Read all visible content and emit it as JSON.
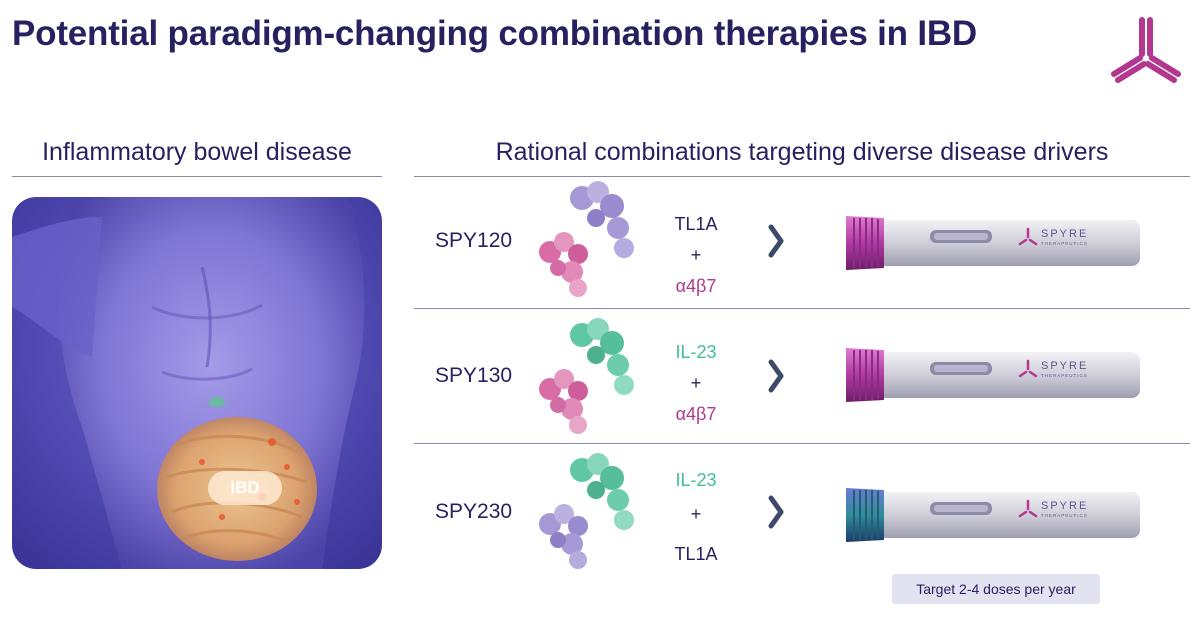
{
  "title": "Potential paradigm-changing combination therapies in IBD",
  "left_section": {
    "heading": "Inflammatory bowel disease",
    "badge": "IBD"
  },
  "right_section": {
    "heading": "Rational combinations targeting diverse disease drivers"
  },
  "colors": {
    "navy": "#262262",
    "magenta": "#b3378f",
    "teal": "#3fbf9d",
    "purple": "#8b7fc2"
  },
  "rows": [
    {
      "name": "SPY120",
      "target_top": "TL1A",
      "plus": "+",
      "target_bottom": "α4β7",
      "top_color": "navy",
      "bottom_color": "magenta",
      "pen_cap": "magenta"
    },
    {
      "name": "SPY130",
      "target_top": "IL-23",
      "plus": "+",
      "target_bottom": "α4β7",
      "top_color": "teal",
      "bottom_color": "magenta",
      "pen_cap": "magenta"
    },
    {
      "name": "SPY230",
      "target_top": "IL-23",
      "plus": "+",
      "target_bottom": "TL1A",
      "top_color": "teal",
      "bottom_color": "navy",
      "pen_cap": "teal"
    }
  ],
  "pen_brand": {
    "name": "SPYRE",
    "sub": "THERAPEUTICS"
  },
  "dosing_badge": "Target 2-4 doses per year"
}
